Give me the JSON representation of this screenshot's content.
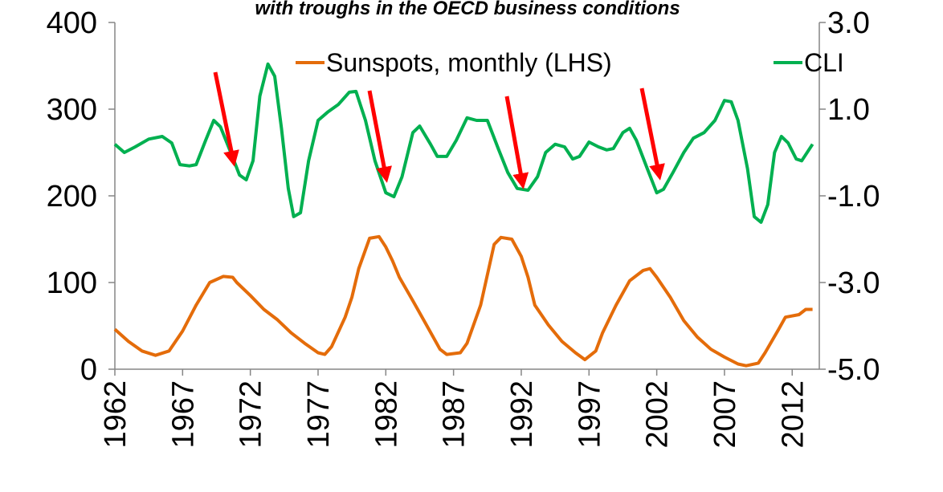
{
  "chart_data": {
    "type": "line",
    "title": "with troughs in the OECD business conditions",
    "xlim": [
      1962,
      2014
    ],
    "xticks": [
      1962,
      1967,
      1972,
      1977,
      1982,
      1987,
      1992,
      1997,
      2002,
      2007,
      2012
    ],
    "ylim": [
      0,
      400
    ],
    "yticks": [
      0,
      100,
      200,
      300,
      400
    ],
    "y2lim": [
      -5,
      3
    ],
    "y2ticks": [
      {
        "value": -5,
        "label": "-5.0"
      },
      {
        "value": -3,
        "label": "-3.0"
      },
      {
        "value": -1,
        "label": "-1.0"
      },
      {
        "value": 1,
        "label": "1.0"
      },
      {
        "value": 3,
        "label": "3.0"
      }
    ],
    "series": [
      {
        "name": "Sunspots, monthly (LHS)",
        "color": "#e46c0a",
        "x": [
          1962,
          1963,
          1964,
          1965,
          1966,
          1967,
          1968,
          1969,
          1970,
          1970.7,
          1971,
          1972,
          1973,
          1974,
          1975,
          1976,
          1977,
          1977.5,
          1978,
          1979,
          1979.5,
          1980,
          1980.8,
          1981.5,
          1982,
          1982.5,
          1983,
          1984,
          1985,
          1986,
          1986.5,
          1987.5,
          1988,
          1989,
          1990,
          1990.5,
          1991.3,
          1992,
          1992.5,
          1993,
          1994,
          1995,
          1996,
          1996.7,
          1997.5,
          1998,
          1999,
          2000,
          2001,
          2001.5,
          2002,
          2003,
          2004,
          2005,
          2006,
          2007,
          2008,
          2008.6,
          2009.5,
          2010,
          2011,
          2011.5,
          2012.5,
          2013,
          2013.5
        ],
        "values": [
          46,
          32,
          21,
          16,
          21,
          44,
          74,
          100,
          107,
          106,
          100,
          85,
          69,
          57,
          42,
          30,
          19,
          17,
          26,
          60,
          83,
          116,
          151,
          153,
          141,
          125,
          106,
          79,
          51,
          23,
          17,
          19,
          30,
          74,
          144,
          152,
          150,
          130,
          106,
          74,
          51,
          32,
          19,
          11,
          21,
          42,
          74,
          102,
          114,
          116,
          106,
          83,
          56,
          37,
          23,
          14,
          6,
          4,
          7,
          19,
          46,
          60,
          63,
          69,
          69
        ]
      },
      {
        "name": "CLI",
        "color": "#00b050",
        "axis": "y2",
        "x": [
          1962,
          1962.7,
          1963.5,
          1964.5,
          1965.5,
          1966.2,
          1966.8,
          1967.5,
          1968,
          1968.7,
          1969.3,
          1969.8,
          1970.5,
          1971.2,
          1971.7,
          1972.2,
          1972.7,
          1973.3,
          1973.8,
          1974.3,
          1974.8,
          1975.2,
          1975.7,
          1976.3,
          1977,
          1977.7,
          1978.5,
          1979.3,
          1979.8,
          1980.5,
          1981.2,
          1982,
          1982.6,
          1983.2,
          1984,
          1984.5,
          1985.3,
          1985.8,
          1986.5,
          1987.2,
          1988,
          1988.7,
          1989.5,
          1990.3,
          1991,
          1991.7,
          1992.5,
          1993.2,
          1993.8,
          1994.5,
          1995.2,
          1995.8,
          1996.3,
          1997,
          1997.7,
          1998.3,
          1998.8,
          1999.5,
          2000,
          2000.5,
          2001.3,
          2002,
          2002.5,
          2003.2,
          2004,
          2004.7,
          2005.5,
          2006.3,
          2007,
          2007.5,
          2008,
          2008.7,
          2009.2,
          2009.7,
          2010.2,
          2010.7,
          2011.2,
          2011.7,
          2012.3,
          2012.7,
          2013.5
        ],
        "values": [
          0.19,
          0.0,
          0.13,
          0.31,
          0.37,
          0.22,
          -0.28,
          -0.31,
          -0.28,
          0.28,
          0.74,
          0.59,
          0.04,
          -0.52,
          -0.63,
          -0.19,
          1.3,
          2.04,
          1.76,
          0.56,
          -0.83,
          -1.48,
          -1.39,
          -0.19,
          0.74,
          0.93,
          1.11,
          1.39,
          1.41,
          0.74,
          -0.19,
          -0.93,
          -1.02,
          -0.56,
          0.46,
          0.61,
          0.19,
          -0.09,
          -0.09,
          0.28,
          0.8,
          0.74,
          0.74,
          0.09,
          -0.46,
          -0.83,
          -0.87,
          -0.56,
          0.0,
          0.19,
          0.13,
          -0.15,
          -0.09,
          0.24,
          0.13,
          0.06,
          0.09,
          0.46,
          0.56,
          0.28,
          -0.37,
          -0.93,
          -0.85,
          -0.46,
          0.0,
          0.33,
          0.46,
          0.74,
          1.2,
          1.17,
          0.74,
          -0.37,
          -1.48,
          -1.61,
          -1.2,
          0.0,
          0.37,
          0.22,
          -0.15,
          -0.19,
          0.19
        ]
      }
    ]
  }
}
